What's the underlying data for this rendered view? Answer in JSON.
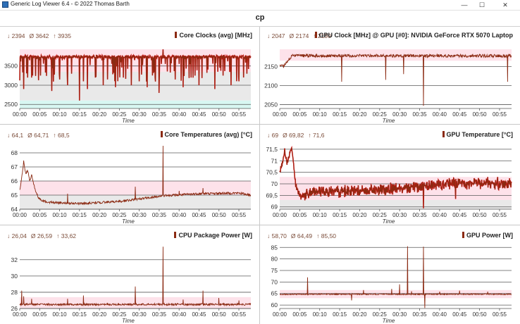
{
  "window": {
    "title": "Generic Log Viewer 6.4 - © 2022 Thomas Barth",
    "minimize_glyph": "—",
    "maximize_glyph": "☐",
    "close_glyph": "✕",
    "icon": "app-chart-icon"
  },
  "header": {
    "title": "cp"
  },
  "colors": {
    "series_dark": "#8b2a12",
    "series_bright": "#e3131a",
    "band_pink": "#fde2ea",
    "band_gray": "#e9e9e9",
    "band_cyan": "#d8f7f2",
    "grid": "#5a5a5a",
    "stats_text": "#7a4b38"
  },
  "time_ticks": [
    "00:00",
    "00:05",
    "00:10",
    "00:15",
    "00:20",
    "00:25",
    "00:30",
    "00:35",
    "00:40",
    "00:45",
    "00:50",
    "00:55"
  ],
  "chart_data": [
    {
      "id": "core-clocks",
      "type": "line",
      "title": "Core Clocks (avg) [MHz]",
      "stats": {
        "min": "↓ 2394",
        "avg": "Ø 3642",
        "max": "↑ 3935"
      },
      "xlabel": "Time",
      "ylim": [
        2394,
        3935
      ],
      "yticks": [
        2500,
        3000,
        3500
      ],
      "yticklabels": [
        "2500",
        "3000",
        "3500"
      ],
      "x_range_min": [
        0,
        58
      ],
      "baseline": 3740,
      "noise": 40,
      "bright": true,
      "dips": [
        [
          1,
          2900
        ],
        [
          3,
          3200
        ],
        [
          4,
          3000
        ],
        [
          6,
          3100
        ],
        [
          8,
          2850
        ],
        [
          10,
          3150
        ],
        [
          12,
          3000
        ],
        [
          13,
          3300
        ],
        [
          15,
          2600
        ],
        [
          16,
          3100
        ],
        [
          17,
          2900
        ],
        [
          19,
          3200
        ],
        [
          21,
          3000
        ],
        [
          22,
          3150
        ],
        [
          24,
          2950
        ],
        [
          26,
          3200
        ],
        [
          28,
          3000
        ],
        [
          30,
          3100
        ],
        [
          32,
          2950
        ],
        [
          34,
          3200
        ],
        [
          35,
          2800
        ],
        [
          36,
          3935
        ],
        [
          37,
          3000
        ],
        [
          39,
          3150
        ],
        [
          41,
          2950
        ],
        [
          43,
          3200
        ],
        [
          45,
          3000
        ],
        [
          47,
          3150
        ],
        [
          49,
          2900
        ],
        [
          51,
          3250
        ],
        [
          53,
          3000
        ],
        [
          55,
          3100
        ],
        [
          57,
          3300
        ]
      ],
      "bands": [
        {
          "from": 3350,
          "to": 3935,
          "color": "band_pink"
        },
        {
          "from": 2600,
          "to": 3350,
          "color": "band_gray"
        },
        {
          "from": 2394,
          "to": 2600,
          "color": "band_cyan"
        }
      ]
    },
    {
      "id": "gpu-clock",
      "type": "line",
      "title": "GPU Clock [MHz] @ GPU [#0]: NVIDIA GeForce RTX 5070 Laptop",
      "stats": {
        "min": "↓ 2047",
        "avg": "Ø 2174",
        "max": "↑ 2190"
      },
      "xlabel": "Time",
      "ylim": [
        2040,
        2195
      ],
      "yticks": [
        2050,
        2100,
        2150
      ],
      "yticklabels": [
        "2050",
        "2100",
        "2150"
      ],
      "x_range_min": [
        0,
        58
      ],
      "baseline": 2178,
      "noise": 4,
      "bright": false,
      "start": [
        [
          0,
          2155
        ],
        [
          1,
          2150
        ],
        [
          2,
          2165
        ],
        [
          3,
          2178
        ]
      ],
      "dips": [
        [
          15.5,
          2110
        ],
        [
          26.5,
          2115
        ],
        [
          31,
          2130
        ],
        [
          36,
          2047
        ],
        [
          57,
          2110
        ]
      ],
      "bands": [
        {
          "from": 2165,
          "to": 2195,
          "color": "band_pink"
        }
      ]
    },
    {
      "id": "core-temperatures",
      "type": "line",
      "title": "Core Temperatures (avg) [°C]",
      "stats": {
        "min": "↓ 64,1",
        "avg": "Ø 64,71",
        "max": "↑ 68,5"
      },
      "xlabel": "Time",
      "ylim": [
        64,
        68.5
      ],
      "yticks": [
        64,
        65,
        66,
        67,
        68
      ],
      "yticklabels": [
        "64",
        "65",
        "66",
        "67",
        "68"
      ],
      "x_range_min": [
        0,
        58
      ],
      "baseline": 64.75,
      "noise": 0.08,
      "bright": false,
      "start": [
        [
          0,
          65.3
        ],
        [
          0.5,
          66.2
        ],
        [
          1,
          67.4
        ],
        [
          1.5,
          66.5
        ],
        [
          2,
          66.8
        ],
        [
          2.5,
          66.0
        ],
        [
          3,
          66.4
        ],
        [
          3.5,
          65.8
        ],
        [
          4,
          65.2
        ],
        [
          5,
          64.7
        ],
        [
          7,
          64.5
        ],
        [
          15,
          64.4
        ],
        [
          25,
          64.55
        ],
        [
          36,
          64.95
        ],
        [
          45,
          65.1
        ],
        [
          55,
          65.15
        ],
        [
          58,
          65.0
        ]
      ],
      "trend": true,
      "dips": [
        [
          12,
          65.1
        ],
        [
          29,
          65.6
        ],
        [
          36,
          68.5
        ],
        [
          40,
          65.3
        ],
        [
          46,
          65.5
        ]
      ],
      "bands": [
        {
          "from": 64,
          "to": 65.0,
          "color": "band_gray"
        },
        {
          "from": 65.0,
          "to": 66.0,
          "color": "band_pink"
        }
      ]
    },
    {
      "id": "gpu-temperature",
      "type": "line",
      "title": "GPU Temperature [°C]",
      "stats": {
        "min": "↓ 69",
        "avg": "Ø 69,82",
        "max": "↑ 71,6"
      },
      "xlabel": "Time",
      "ylim": [
        68.9,
        71.65
      ],
      "yticks": [
        69,
        69.5,
        70,
        70.5,
        71,
        71.5
      ],
      "yticklabels": [
        "69",
        "69,5",
        "70",
        "70,5",
        "71",
        "71,5"
      ],
      "x_range_min": [
        0,
        58
      ],
      "baseline": 69.7,
      "noise": 0.12,
      "bright": true,
      "start": [
        [
          0,
          70.5
        ],
        [
          0.7,
          70.9
        ],
        [
          1.2,
          71.5
        ],
        [
          1.8,
          70.9
        ],
        [
          2.5,
          71.3
        ],
        [
          3,
          71.6
        ],
        [
          3.5,
          70.8
        ],
        [
          4,
          69.9
        ],
        [
          5,
          69.5
        ],
        [
          8,
          69.65
        ],
        [
          20,
          69.7
        ],
        [
          30,
          69.8
        ],
        [
          40,
          69.95
        ],
        [
          50,
          70.05
        ],
        [
          58,
          70.0
        ]
      ],
      "trend": true,
      "dips": [
        [
          36,
          69.1
        ],
        [
          44,
          69.3
        ]
      ],
      "bands": [
        {
          "from": 69.3,
          "to": 70.3,
          "color": "band_pink"
        },
        {
          "from": 68.9,
          "to": 69.3,
          "color": "band_gray"
        }
      ]
    },
    {
      "id": "cpu-package-power",
      "type": "line",
      "title": "CPU Package Power [W]",
      "stats": {
        "min": "↓ 26,04",
        "avg": "Ø 26,59",
        "max": "↑ 33,62"
      },
      "xlabel": "Time",
      "ylim": [
        26,
        33.8
      ],
      "yticks": [
        26,
        28,
        30,
        32
      ],
      "yticklabels": [
        "26",
        "28",
        "30",
        "32"
      ],
      "x_range_min": [
        0,
        58
      ],
      "baseline": 26.5,
      "noise": 0.12,
      "bright": false,
      "dips": [
        [
          0.5,
          28.2
        ],
        [
          1,
          27.5
        ],
        [
          3,
          27.2
        ],
        [
          12,
          27.2
        ],
        [
          16,
          27.6
        ],
        [
          29,
          28.7
        ],
        [
          36,
          33.6
        ],
        [
          41,
          27.1
        ],
        [
          46,
          28.2
        ],
        [
          50,
          27.3
        ],
        [
          55,
          27.0
        ]
      ],
      "bands": [
        {
          "from": 26,
          "to": 27.4,
          "color": "band_pink"
        }
      ]
    },
    {
      "id": "gpu-power",
      "type": "line",
      "title": "GPU Power [W]",
      "stats": {
        "min": "↓ 58,70",
        "avg": "Ø 64,49",
        "max": "↑ 85,50"
      },
      "xlabel": "Time",
      "ylim": [
        58.5,
        86
      ],
      "yticks": [
        60,
        65,
        70,
        75,
        80,
        85
      ],
      "yticklabels": [
        "60",
        "65",
        "70",
        "75",
        "80",
        "85"
      ],
      "x_range_min": [
        0,
        58
      ],
      "baseline": 64.7,
      "noise": 0.25,
      "bright": false,
      "dips": [
        [
          7,
          72
        ],
        [
          18,
          62
        ],
        [
          21,
          66.5
        ],
        [
          28,
          67
        ],
        [
          30,
          69
        ],
        [
          32,
          85.5
        ],
        [
          33,
          66
        ],
        [
          36,
          85.3
        ],
        [
          36.3,
          58.7
        ],
        [
          40,
          65.8
        ],
        [
          45,
          66.3
        ],
        [
          52,
          65.8
        ]
      ],
      "bands": [
        {
          "from": 63,
          "to": 66.5,
          "color": "band_pink"
        }
      ]
    }
  ]
}
